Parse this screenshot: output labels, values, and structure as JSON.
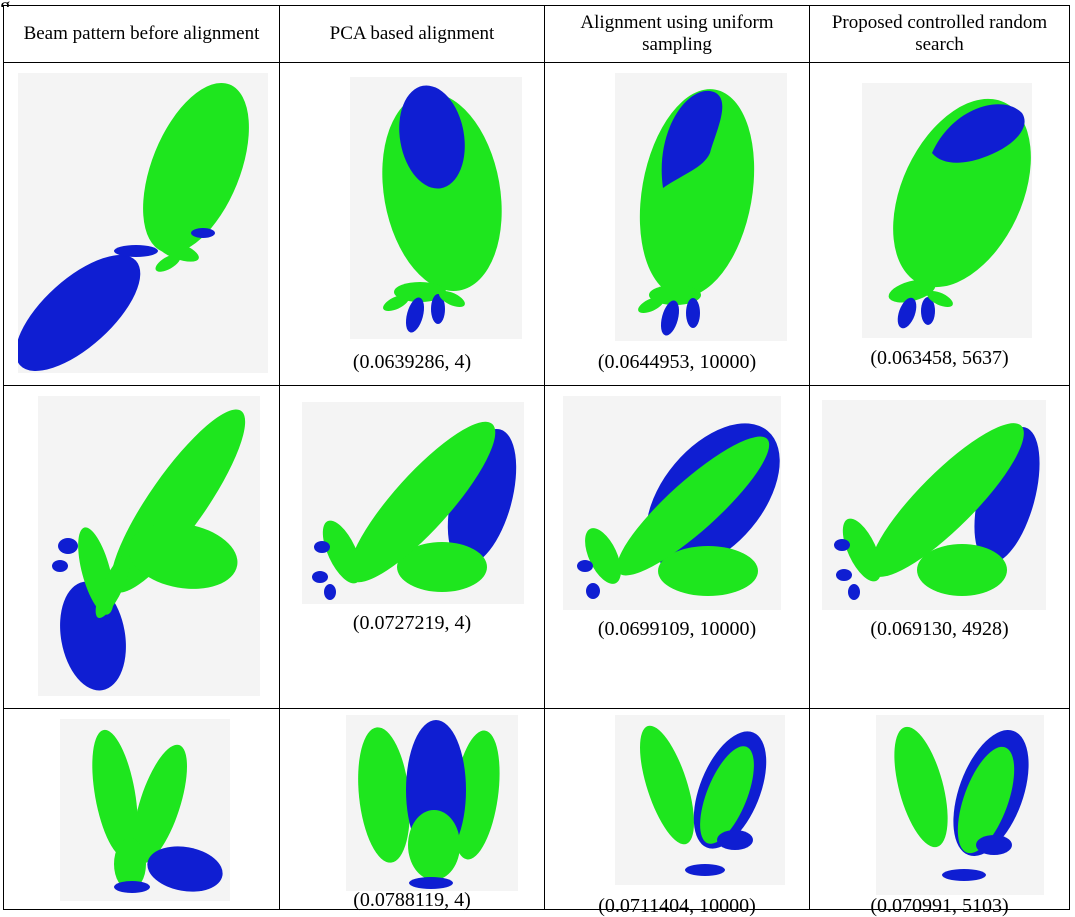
{
  "figure_label_fragment": "g",
  "headers": [
    "Beam pattern before alignment",
    "PCA based alignment",
    "Alignment using uniform sampling",
    "Proposed controlled random search"
  ],
  "rows": [
    {
      "cells": [
        {
          "caption": ""
        },
        {
          "caption": "(0.0639286, 4)"
        },
        {
          "caption": "(0.0644953, 10000)"
        },
        {
          "caption": "(0.063458, 5637)"
        }
      ]
    },
    {
      "cells": [
        {
          "caption": ""
        },
        {
          "caption": "(0.0727219, 4)"
        },
        {
          "caption": "(0.0699109, 10000)"
        },
        {
          "caption": "(0.069130, 4928)"
        }
      ]
    },
    {
      "cells": [
        {
          "caption": ""
        },
        {
          "caption": "(0.0788119, 4)"
        },
        {
          "caption": "(0.0711404, 10000)"
        },
        {
          "caption": "(0.070991, 5103)"
        }
      ]
    }
  ],
  "colors": {
    "green": "#1ee61e",
    "blue": "#0f1ed2",
    "background": "#f4f4f4",
    "border": "#000000"
  }
}
